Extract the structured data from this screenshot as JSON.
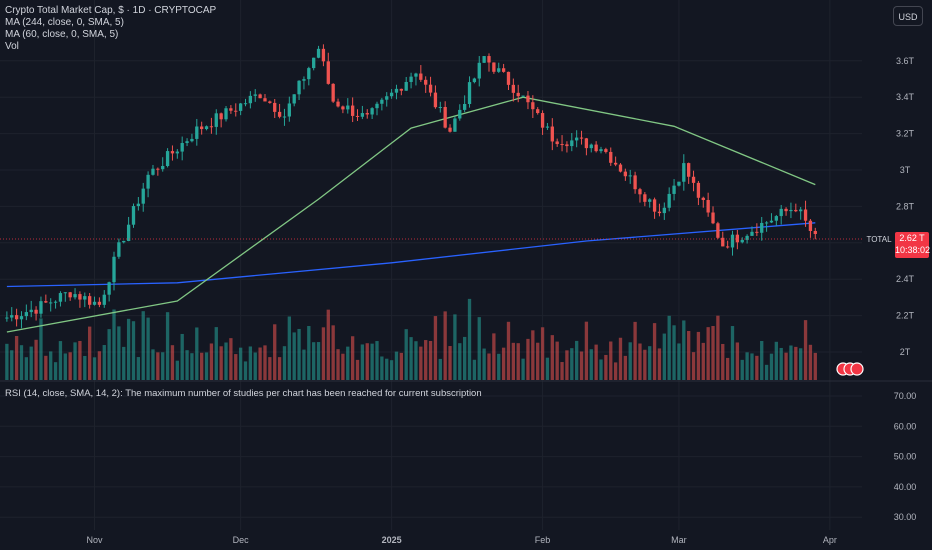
{
  "header": {
    "title": "Crypto Total Market Cap, $ · 1D · CRYPTOCAP",
    "indicators": [
      "MA (244, close, 0, SMA, 5)",
      "MA (60, close, 0, SMA, 5)",
      "Vol"
    ],
    "currency_button": "USD"
  },
  "rsi_message": "RSI (14, close, SMA, 14, 2): The maximum number of studies per chart has been reached for current subscription",
  "price_tag": {
    "label": "TOTAL",
    "value": "2.62 T",
    "countdown": "10:38:02"
  },
  "colors": {
    "up": "#26a69a",
    "down": "#ef5350",
    "ma244": "#2962ff",
    "ma60": "#81c784",
    "background": "#131722"
  },
  "chart_data": {
    "type": "candlestick",
    "title": "Crypto Total Market Cap, $ · 1D · CRYPTOCAP",
    "y_axis": {
      "unit": "T",
      "ticks": [
        "3.6T",
        "3.4T",
        "3.2T",
        "3T",
        "2.8T",
        "2.6T",
        "2.4T",
        "2.2T",
        "2T"
      ],
      "range": [
        1.95,
        3.75
      ],
      "scale": "linear"
    },
    "x_axis": {
      "ticks": [
        "Nov",
        "Dec",
        "2025",
        "Feb",
        "Mar",
        "Apr"
      ]
    },
    "rsi_axis": {
      "ticks": [
        "70.00",
        "60.00",
        "50.00",
        "40.00",
        "30.00"
      ]
    },
    "grid": true,
    "series": [
      {
        "name": "Crypto Total Market Cap",
        "approx_close_path": [
          {
            "date": "2024-10-14",
            "close": 2.19
          },
          {
            "date": "2024-10-20",
            "close": 2.24
          },
          {
            "date": "2024-10-27",
            "close": 2.33
          },
          {
            "date": "2024-11-02",
            "close": 2.26
          },
          {
            "date": "2024-11-06",
            "close": 2.57
          },
          {
            "date": "2024-11-12",
            "close": 2.97
          },
          {
            "date": "2024-11-22",
            "close": 3.22
          },
          {
            "date": "2024-12-05",
            "close": 3.42
          },
          {
            "date": "2024-12-10",
            "close": 3.3
          },
          {
            "date": "2024-12-17",
            "close": 3.67
          },
          {
            "date": "2024-12-20",
            "close": 3.38
          },
          {
            "date": "2024-12-27",
            "close": 3.28
          },
          {
            "date": "2025-01-06",
            "close": 3.55
          },
          {
            "date": "2025-01-13",
            "close": 3.22
          },
          {
            "date": "2025-01-20",
            "close": 3.62
          },
          {
            "date": "2025-01-27",
            "close": 3.43
          },
          {
            "date": "2025-02-03",
            "close": 3.18
          },
          {
            "date": "2025-02-13",
            "close": 3.13
          },
          {
            "date": "2025-02-25",
            "close": 2.77
          },
          {
            "date": "2025-03-02",
            "close": 3.02
          },
          {
            "date": "2025-03-10",
            "close": 2.59
          },
          {
            "date": "2025-03-20",
            "close": 2.73
          },
          {
            "date": "2025-03-25",
            "close": 2.8
          },
          {
            "date": "2025-03-29",
            "close": 2.62
          }
        ]
      },
      {
        "name": "MA (244, close, 0, SMA, 5)",
        "approx_path": [
          {
            "date": "2024-10-14",
            "value": 2.36
          },
          {
            "date": "2024-11-18",
            "value": 2.38
          },
          {
            "date": "2025-01-01",
            "value": 2.49
          },
          {
            "date": "2025-02-10",
            "value": 2.61
          },
          {
            "date": "2025-03-29",
            "value": 2.71
          }
        ]
      },
      {
        "name": "MA (60, close, 0, SMA, 5)",
        "approx_path": [
          {
            "date": "2024-10-14",
            "value": 2.11
          },
          {
            "date": "2024-11-18",
            "value": 2.28
          },
          {
            "date": "2024-12-17",
            "value": 2.84
          },
          {
            "date": "2025-01-05",
            "value": 3.23
          },
          {
            "date": "2025-01-28",
            "value": 3.4
          },
          {
            "date": "2025-02-28",
            "value": 3.24
          },
          {
            "date": "2025-03-29",
            "value": 2.92
          }
        ]
      }
    ],
    "last_price": "2.62 T"
  }
}
